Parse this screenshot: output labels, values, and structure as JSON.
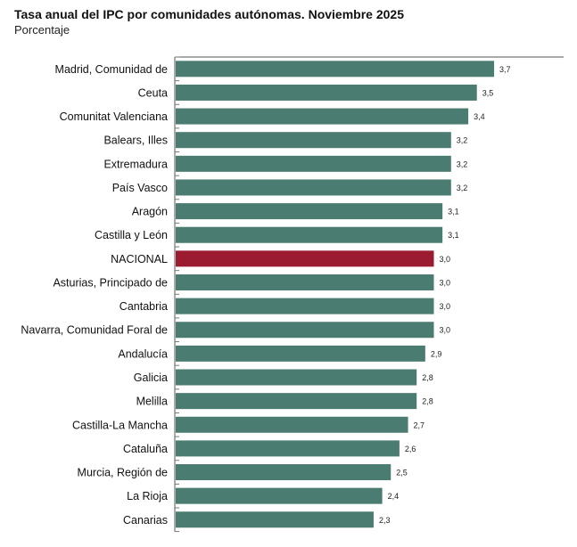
{
  "chart_data": {
    "type": "bar",
    "orientation": "horizontal",
    "title": "Tasa anual del IPC por comunidades autónomas. Noviembre 2025",
    "subtitle": "Porcentaje",
    "categories": [
      "Madrid, Comunidad de",
      "Ceuta",
      "Comunitat Valenciana",
      "Balears, Illes",
      "Extremadura",
      "País Vasco",
      "Aragón",
      "Castilla y León",
      "NACIONAL",
      "Asturias, Principado de",
      "Cantabria",
      "Navarra, Comunidad Foral de",
      "Andalucía",
      "Galicia",
      "Melilla",
      "Castilla-La Mancha",
      "Cataluña",
      "Murcia, Región de",
      "La Rioja",
      "Canarias"
    ],
    "values": [
      3.7,
      3.5,
      3.4,
      3.2,
      3.2,
      3.2,
      3.1,
      3.1,
      3.0,
      3.0,
      3.0,
      3.0,
      2.9,
      2.8,
      2.8,
      2.7,
      2.6,
      2.5,
      2.4,
      2.3
    ],
    "data_labels": [
      "3,7",
      "3,5",
      "3,4",
      "3,2",
      "3,2",
      "3,2",
      "3,1",
      "3,1",
      "3,0",
      "3,0",
      "3,0",
      "3,0",
      "2,9",
      "2,8",
      "2,8",
      "2,7",
      "2,6",
      "2,5",
      "2,4",
      "2,3"
    ],
    "highlight": "NACIONAL",
    "xlim": [
      0,
      4.5
    ],
    "grid": false,
    "colors": {
      "default": "#4a7c72",
      "highlight": "#9b1b30"
    }
  }
}
